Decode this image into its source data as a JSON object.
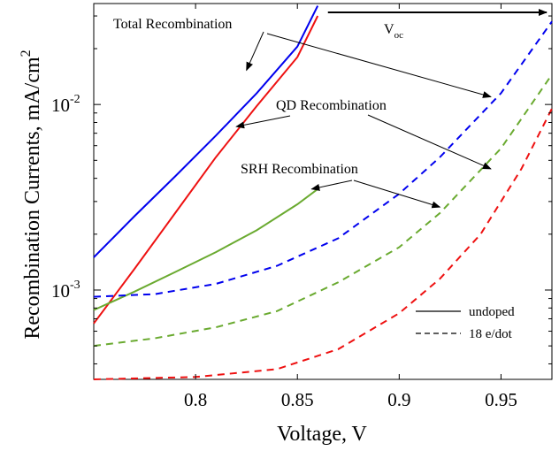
{
  "chart_data": {
    "type": "line",
    "xlabel": "Voltage, V",
    "ylabel": "Recombination Currents, mA/cm",
    "ylabel_sup": "2",
    "xlim": [
      0.75,
      0.975
    ],
    "ylim": [
      0.00033,
      0.035
    ],
    "y_scale": "log",
    "grid": false,
    "x_ticks": [
      0.8,
      0.85,
      0.9,
      0.95
    ],
    "x_tick_labels": [
      "0.8",
      "0.85",
      "0.9",
      "0.95"
    ],
    "y_ticks": [
      0.001,
      0.01
    ],
    "y_tick_base": "10",
    "y_tick_exponents": [
      "-3",
      "-2"
    ],
    "series": [
      {
        "color": "#0000ee",
        "style": "solid",
        "x": [
          0.75,
          0.77,
          0.79,
          0.81,
          0.83,
          0.85,
          0.86
        ],
        "y": [
          0.0015,
          0.0025,
          0.0041,
          0.0068,
          0.0115,
          0.0205,
          0.034
        ]
      },
      {
        "color": "#ee1111",
        "style": "solid",
        "x": [
          0.75,
          0.77,
          0.79,
          0.81,
          0.83,
          0.85,
          0.86
        ],
        "y": [
          0.00066,
          0.0013,
          0.0026,
          0.0052,
          0.0098,
          0.018,
          0.03
        ]
      },
      {
        "color": "#6aaa30",
        "style": "solid",
        "x": [
          0.75,
          0.77,
          0.79,
          0.81,
          0.83,
          0.85,
          0.86
        ],
        "y": [
          0.00078,
          0.00098,
          0.00125,
          0.0016,
          0.0021,
          0.0029,
          0.0035
        ]
      },
      {
        "color": "#0000ee",
        "style": "dashed",
        "x": [
          0.75,
          0.78,
          0.81,
          0.84,
          0.87,
          0.9,
          0.92,
          0.95,
          0.975
        ],
        "y": [
          0.00092,
          0.00095,
          0.00108,
          0.00135,
          0.0019,
          0.0033,
          0.0052,
          0.0115,
          0.028
        ]
      },
      {
        "color": "#6aaa30",
        "style": "dashed",
        "x": [
          0.75,
          0.78,
          0.81,
          0.84,
          0.87,
          0.9,
          0.92,
          0.95,
          0.975
        ],
        "y": [
          0.0005,
          0.00055,
          0.00063,
          0.00077,
          0.0011,
          0.0017,
          0.0026,
          0.0058,
          0.0145
        ]
      },
      {
        "color": "#ee1111",
        "style": "dashed",
        "x": [
          0.75,
          0.8,
          0.84,
          0.87,
          0.9,
          0.92,
          0.94,
          0.96,
          0.975
        ],
        "y": [
          0.00033,
          0.00034,
          0.000375,
          0.00048,
          0.00075,
          0.00115,
          0.002,
          0.0045,
          0.0095
        ]
      }
    ],
    "annotations": [
      {
        "text": "Total Recombination",
        "arrows": [
          [
            0.825,
            0.0153
          ],
          [
            0.945,
            0.011
          ]
        ]
      },
      {
        "text": "QD Recombination",
        "arrows": [
          [
            0.82,
            0.0076
          ],
          [
            0.945,
            0.0045
          ]
        ]
      },
      {
        "text": "SRH Recombination",
        "arrows": [
          [
            0.857,
            0.0035
          ],
          [
            0.92,
            0.0028
          ]
        ]
      },
      {
        "text": "V",
        "subscript": "oc",
        "arrow_from": [
          0.865,
          0.033
        ],
        "arrow_to": [
          0.975,
          0.033
        ]
      }
    ],
    "legend": {
      "position": "bottom-right",
      "entries": [
        {
          "label": "undoped",
          "style": "solid"
        },
        {
          "label": "18 e/dot",
          "style": "dashed"
        }
      ]
    }
  }
}
